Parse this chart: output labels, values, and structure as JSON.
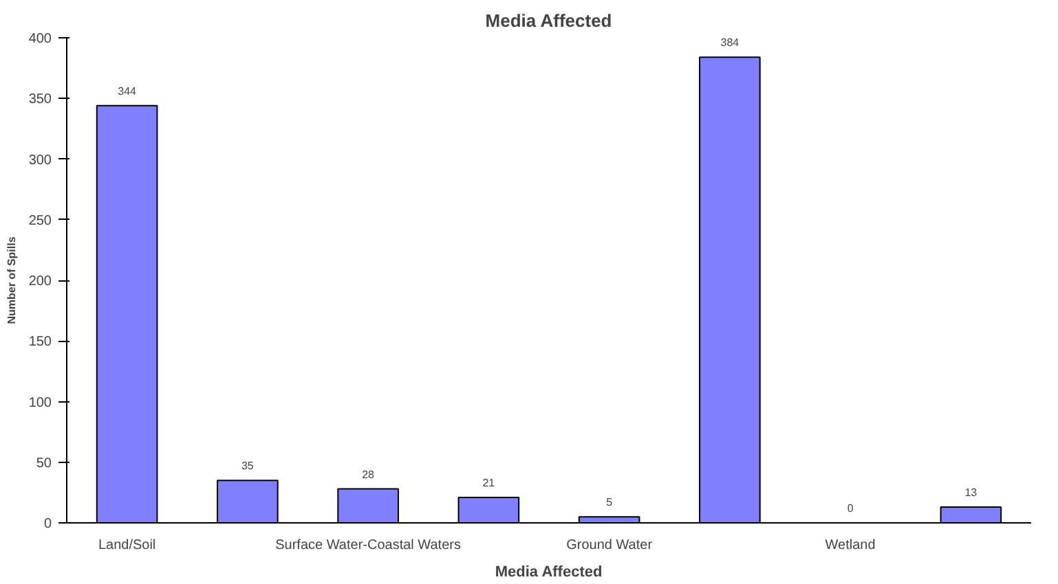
{
  "chart_data": {
    "type": "bar",
    "title": "Media Affected",
    "xlabel": "Media Affected",
    "ylabel": "Number of Spills",
    "categories": [
      "Land/Soil",
      null,
      "Surface Water-Coastal Waters",
      null,
      "Ground Water",
      null,
      "Wetland",
      null
    ],
    "values": [
      344,
      35,
      28,
      21,
      5,
      384,
      0,
      13
    ],
    "color": "#8080ff",
    "data_labels": true,
    "grid": false,
    "ylim": [
      0,
      400
    ],
    "yticks": [
      0,
      50,
      100,
      150,
      200,
      250,
      300,
      350,
      400
    ]
  }
}
